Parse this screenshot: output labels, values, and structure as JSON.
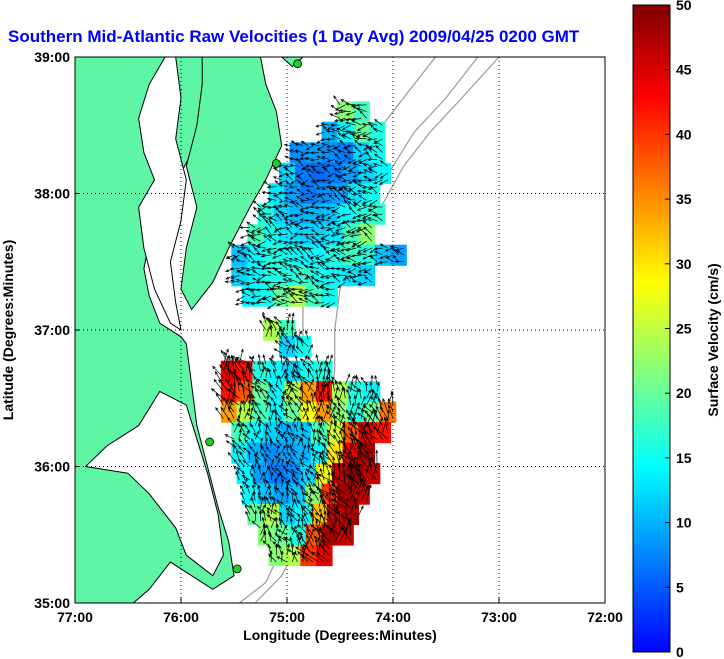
{
  "chart_data": {
    "type": "heatmap",
    "title": "Southern Mid-Atlantic Raw Velocities (1 Day Avg) 2009/04/25 0200 GMT",
    "xlabel": "Longitude (Degrees:Minutes)",
    "ylabel": "Latitude (Degrees:Minutes)",
    "colorbar_label": "Surface Velocity (cm/s)",
    "xlim": [
      -77,
      -72
    ],
    "ylim": [
      35,
      39
    ],
    "clim": [
      0,
      50
    ],
    "x_ticks": [
      -77,
      -76,
      -75,
      -74,
      -73,
      -72
    ],
    "x_tick_labels": [
      "77:00",
      "76:00",
      "75:00",
      "74:00",
      "73:00",
      "72:00"
    ],
    "y_ticks": [
      35,
      36,
      37,
      38,
      39
    ],
    "y_tick_labels": [
      "35:00",
      "36:00",
      "37:00",
      "38:00",
      "39:00"
    ],
    "colorbar_ticks": [
      0,
      5,
      10,
      15,
      20,
      25,
      30,
      35,
      40,
      45,
      50
    ],
    "grid": "dotted",
    "colors": {
      "land": "#5ef5a5",
      "ocean": "#ffffff",
      "title": "#0000ff",
      "coast_outline": "#000000",
      "bathymetry": "#9a9a9a",
      "station_marker": "#22cc22",
      "colormap": [
        "#0000ff",
        "#0080ff",
        "#00ffff",
        "#80ff80",
        "#ffff00",
        "#ff8000",
        "#ff0000",
        "#800000"
      ]
    },
    "stations": [
      {
        "lon": -74.9,
        "lat": 38.95
      },
      {
        "lon": -75.1,
        "lat": 38.22
      },
      {
        "lon": -75.73,
        "lat": 36.18
      },
      {
        "lon": -75.47,
        "lat": 35.25
      }
    ],
    "regions": [
      {
        "name": "north",
        "cells": [
          [
            -74.45,
            38.6,
            22
          ],
          [
            -74.3,
            38.6,
            18
          ],
          [
            -74.6,
            38.45,
            10
          ],
          [
            -74.45,
            38.45,
            14
          ],
          [
            -74.3,
            38.45,
            20
          ],
          [
            -74.15,
            38.45,
            16
          ],
          [
            -74.9,
            38.3,
            8
          ],
          [
            -74.75,
            38.3,
            9
          ],
          [
            -74.6,
            38.3,
            8
          ],
          [
            -74.45,
            38.3,
            7
          ],
          [
            -74.3,
            38.3,
            12
          ],
          [
            -74.15,
            38.3,
            15
          ],
          [
            -75.0,
            38.15,
            12
          ],
          [
            -74.85,
            38.15,
            7
          ],
          [
            -74.7,
            38.15,
            6
          ],
          [
            -74.55,
            38.15,
            7
          ],
          [
            -74.4,
            38.15,
            9
          ],
          [
            -74.25,
            38.15,
            12
          ],
          [
            -74.1,
            38.15,
            14
          ],
          [
            -75.1,
            38.0,
            13
          ],
          [
            -74.95,
            38.0,
            9
          ],
          [
            -74.8,
            38.0,
            7
          ],
          [
            -74.65,
            38.0,
            8
          ],
          [
            -74.5,
            38.0,
            9
          ],
          [
            -74.35,
            38.0,
            13
          ],
          [
            -74.2,
            38.0,
            15
          ],
          [
            -75.2,
            37.85,
            16
          ],
          [
            -75.05,
            37.85,
            12
          ],
          [
            -74.9,
            37.85,
            10
          ],
          [
            -74.75,
            37.85,
            10
          ],
          [
            -74.6,
            37.85,
            11
          ],
          [
            -74.45,
            37.85,
            14
          ],
          [
            -74.3,
            37.85,
            16
          ],
          [
            -74.15,
            37.85,
            17
          ],
          [
            -75.3,
            37.7,
            18
          ],
          [
            -75.15,
            37.7,
            15
          ],
          [
            -75.0,
            37.7,
            13
          ],
          [
            -74.85,
            37.7,
            12
          ],
          [
            -74.7,
            37.7,
            12
          ],
          [
            -74.55,
            37.7,
            13
          ],
          [
            -74.4,
            37.7,
            18
          ],
          [
            -74.25,
            37.7,
            22
          ],
          [
            -75.45,
            37.55,
            11
          ],
          [
            -75.3,
            37.55,
            14
          ],
          [
            -75.15,
            37.55,
            16
          ],
          [
            -75.0,
            37.55,
            15
          ],
          [
            -74.85,
            37.55,
            14
          ],
          [
            -74.7,
            37.55,
            14
          ],
          [
            -74.55,
            37.55,
            16
          ],
          [
            -74.4,
            37.55,
            18
          ],
          [
            -74.25,
            37.55,
            16
          ],
          [
            -74.1,
            37.55,
            11
          ],
          [
            -73.95,
            37.55,
            9
          ],
          [
            -75.45,
            37.4,
            12
          ],
          [
            -75.3,
            37.4,
            14
          ],
          [
            -75.15,
            37.4,
            16
          ],
          [
            -75.0,
            37.4,
            16
          ],
          [
            -74.85,
            37.4,
            17
          ],
          [
            -74.7,
            37.4,
            15
          ],
          [
            -74.55,
            37.4,
            14
          ],
          [
            -74.4,
            37.4,
            13
          ],
          [
            -74.25,
            37.4,
            12
          ],
          [
            -75.35,
            37.25,
            14
          ],
          [
            -75.2,
            37.25,
            15
          ],
          [
            -75.05,
            37.25,
            20
          ],
          [
            -74.9,
            37.25,
            24
          ],
          [
            -74.75,
            37.25,
            18
          ],
          [
            -74.6,
            37.25,
            15
          ]
        ]
      },
      {
        "name": "south",
        "cells": [
          [
            -75.15,
            37.0,
            24
          ],
          [
            -75.0,
            37.0,
            18
          ],
          [
            -75.0,
            36.88,
            12
          ],
          [
            -74.85,
            36.88,
            15
          ],
          [
            -75.55,
            36.7,
            44
          ],
          [
            -75.4,
            36.7,
            42
          ],
          [
            -75.25,
            36.7,
            16
          ],
          [
            -75.1,
            36.7,
            14
          ],
          [
            -74.95,
            36.7,
            12
          ],
          [
            -74.8,
            36.7,
            15
          ],
          [
            -74.65,
            36.7,
            16
          ],
          [
            -75.55,
            36.55,
            42
          ],
          [
            -75.4,
            36.55,
            38
          ],
          [
            -75.25,
            36.55,
            20
          ],
          [
            -75.1,
            36.55,
            14
          ],
          [
            -74.95,
            36.55,
            24
          ],
          [
            -74.8,
            36.55,
            34
          ],
          [
            -74.65,
            36.55,
            42
          ],
          [
            -74.5,
            36.55,
            24
          ],
          [
            -74.35,
            36.55,
            16
          ],
          [
            -74.2,
            36.55,
            14
          ],
          [
            -75.55,
            36.4,
            34
          ],
          [
            -75.4,
            36.4,
            24
          ],
          [
            -75.25,
            36.4,
            18
          ],
          [
            -75.1,
            36.4,
            14
          ],
          [
            -74.95,
            36.4,
            20
          ],
          [
            -74.8,
            36.4,
            28
          ],
          [
            -74.65,
            36.4,
            34
          ],
          [
            -74.5,
            36.4,
            22
          ],
          [
            -74.35,
            36.4,
            16
          ],
          [
            -74.2,
            36.4,
            20
          ],
          [
            -74.05,
            36.4,
            36
          ],
          [
            -75.45,
            36.25,
            18
          ],
          [
            -75.3,
            36.25,
            14
          ],
          [
            -75.15,
            36.25,
            12
          ],
          [
            -75.0,
            36.25,
            10
          ],
          [
            -74.85,
            36.25,
            11
          ],
          [
            -74.7,
            36.25,
            18
          ],
          [
            -74.55,
            36.25,
            26
          ],
          [
            -74.4,
            36.25,
            38
          ],
          [
            -74.25,
            36.25,
            45
          ],
          [
            -74.1,
            36.25,
            42
          ],
          [
            -75.45,
            36.1,
            14
          ],
          [
            -75.3,
            36.1,
            10
          ],
          [
            -75.15,
            36.1,
            8
          ],
          [
            -75.0,
            36.1,
            9
          ],
          [
            -74.85,
            36.1,
            10
          ],
          [
            -74.7,
            36.1,
            14
          ],
          [
            -74.55,
            36.1,
            30
          ],
          [
            -74.4,
            36.1,
            44
          ],
          [
            -74.25,
            36.1,
            48
          ],
          [
            -75.4,
            35.95,
            14
          ],
          [
            -75.25,
            35.95,
            9
          ],
          [
            -75.1,
            35.95,
            7
          ],
          [
            -74.95,
            35.95,
            8
          ],
          [
            -74.8,
            35.95,
            12
          ],
          [
            -74.65,
            35.95,
            28
          ],
          [
            -74.5,
            35.95,
            46
          ],
          [
            -74.35,
            35.95,
            49
          ],
          [
            -74.2,
            35.95,
            46
          ],
          [
            -75.35,
            35.8,
            14
          ],
          [
            -75.2,
            35.8,
            11
          ],
          [
            -75.05,
            35.8,
            9
          ],
          [
            -74.9,
            35.8,
            11
          ],
          [
            -74.75,
            35.8,
            22
          ],
          [
            -74.6,
            35.8,
            40
          ],
          [
            -74.45,
            35.8,
            48
          ],
          [
            -74.3,
            35.8,
            46
          ],
          [
            -75.3,
            35.65,
            20
          ],
          [
            -75.15,
            35.65,
            24
          ],
          [
            -75.0,
            35.65,
            12
          ],
          [
            -74.85,
            35.65,
            14
          ],
          [
            -74.7,
            35.65,
            32
          ],
          [
            -74.55,
            35.65,
            46
          ],
          [
            -74.4,
            35.65,
            48
          ],
          [
            -75.2,
            35.5,
            22
          ],
          [
            -75.05,
            35.5,
            20
          ],
          [
            -74.9,
            35.5,
            16
          ],
          [
            -74.75,
            35.5,
            38
          ],
          [
            -74.6,
            35.5,
            48
          ],
          [
            -74.45,
            35.5,
            46
          ],
          [
            -75.1,
            35.35,
            22
          ],
          [
            -74.95,
            35.35,
            24
          ],
          [
            -74.8,
            35.35,
            40
          ],
          [
            -74.65,
            35.35,
            44
          ]
        ]
      }
    ]
  }
}
